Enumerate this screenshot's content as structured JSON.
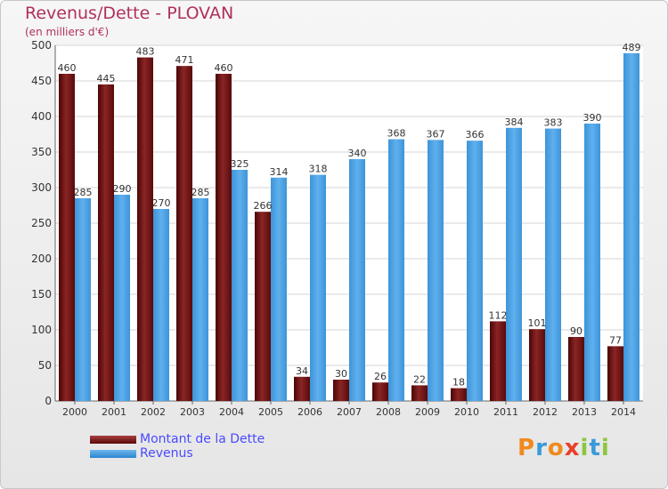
{
  "header": {
    "title": "Revenus/Dette - PLOVAN",
    "subtitle": "(en milliers d'€)"
  },
  "legend": {
    "dette_label": "Montant de la Dette",
    "revenus_label": "Revenus"
  },
  "logo": {
    "text": "Proxiti",
    "colors": [
      "#f08a1e",
      "#3a9ad9",
      "#f08a1e",
      "#e8402a",
      "#8dc63f",
      "#3a9ad9",
      "#8dc63f"
    ]
  },
  "colors": {
    "dette": "#7a1a1a",
    "revenus": "#4aa3e6",
    "title": "#b0305a"
  },
  "chart_data": {
    "type": "bar",
    "categories": [
      "2000",
      "2001",
      "2002",
      "2003",
      "2004",
      "2005",
      "2006",
      "2007",
      "2008",
      "2009",
      "2010",
      "2011",
      "2012",
      "2013",
      "2014"
    ],
    "series": [
      {
        "name": "Montant de la Dette",
        "values": [
          460,
          445,
          483,
          471,
          460,
          266,
          34,
          30,
          26,
          22,
          18,
          112,
          101,
          90,
          77
        ]
      },
      {
        "name": "Revenus",
        "values": [
          285,
          290,
          270,
          285,
          325,
          314,
          318,
          340,
          368,
          367,
          366,
          384,
          383,
          390,
          489
        ]
      }
    ],
    "ylim": [
      0,
      500
    ],
    "yticks": [
      0,
      50,
      100,
      150,
      200,
      250,
      300,
      350,
      400,
      450,
      500
    ],
    "grid": true
  }
}
